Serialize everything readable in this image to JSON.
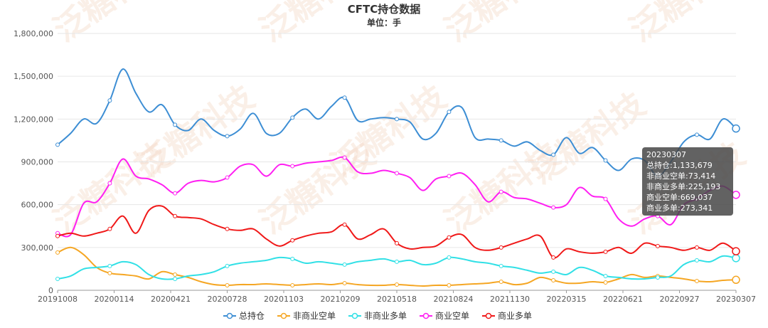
{
  "chart_data": {
    "type": "line",
    "title": "CFTC持仓数据",
    "subtitle": "单位：手",
    "ylim": [
      0,
      1800000
    ],
    "y_ticks": [
      "0",
      "300,000",
      "600,000",
      "900,000",
      "1,200,000",
      "1,500,000",
      "1,800,000"
    ],
    "y_tick_values": [
      0,
      300000,
      600000,
      900000,
      1200000,
      1500000,
      1800000
    ],
    "x_tick_labels": [
      "20191008",
      "20200114",
      "20200421",
      "20200728",
      "20201103",
      "20210209",
      "20210518",
      "20210824",
      "20211130",
      "20220315",
      "20220621",
      "20220927",
      "20230307"
    ],
    "grid": true,
    "legend_position": "bottom",
    "watermark": "泛糖科技",
    "series": [
      {
        "name": "总持仓",
        "color": "#3d8ed4",
        "values": [
          1020000,
          1100000,
          1200000,
          1170000,
          1330000,
          1550000,
          1380000,
          1250000,
          1300000,
          1160000,
          1120000,
          1200000,
          1120000,
          1080000,
          1130000,
          1240000,
          1100000,
          1100000,
          1210000,
          1270000,
          1200000,
          1290000,
          1350000,
          1190000,
          1200000,
          1210000,
          1200000,
          1180000,
          1060000,
          1100000,
          1250000,
          1280000,
          1070000,
          1060000,
          1050000,
          1010000,
          1040000,
          980000,
          950000,
          1070000,
          960000,
          1000000,
          910000,
          840000,
          920000,
          910000,
          800000,
          900000,
          1040000,
          1090000,
          1060000,
          1200000,
          1133679
        ]
      },
      {
        "name": "非商业空单",
        "color": "#f5a623",
        "values": [
          265000,
          300000,
          250000,
          160000,
          120000,
          110000,
          100000,
          80000,
          130000,
          110000,
          90000,
          60000,
          40000,
          35000,
          40000,
          40000,
          45000,
          40000,
          35000,
          40000,
          45000,
          40000,
          50000,
          40000,
          35000,
          35000,
          40000,
          35000,
          30000,
          35000,
          35000,
          40000,
          45000,
          50000,
          60000,
          40000,
          50000,
          90000,
          70000,
          50000,
          50000,
          60000,
          55000,
          80000,
          110000,
          90000,
          100000,
          90000,
          80000,
          65000,
          60000,
          70000,
          73414
        ]
      },
      {
        "name": "非商业多单",
        "color": "#31e0e6",
        "values": [
          80000,
          100000,
          150000,
          160000,
          170000,
          200000,
          180000,
          110000,
          80000,
          80000,
          100000,
          110000,
          130000,
          170000,
          190000,
          200000,
          210000,
          230000,
          220000,
          190000,
          200000,
          190000,
          180000,
          200000,
          210000,
          220000,
          200000,
          210000,
          180000,
          190000,
          230000,
          220000,
          200000,
          190000,
          170000,
          160000,
          140000,
          120000,
          130000,
          110000,
          160000,
          140000,
          100000,
          90000,
          80000,
          80000,
          90000,
          100000,
          180000,
          210000,
          200000,
          240000,
          225193
        ]
      },
      {
        "name": "商业空单",
        "color": "#ff1ff2",
        "values": [
          400000,
          390000,
          610000,
          620000,
          750000,
          920000,
          800000,
          780000,
          740000,
          680000,
          750000,
          770000,
          760000,
          790000,
          870000,
          880000,
          800000,
          880000,
          870000,
          890000,
          900000,
          910000,
          930000,
          830000,
          820000,
          840000,
          820000,
          790000,
          700000,
          780000,
          800000,
          820000,
          740000,
          620000,
          690000,
          650000,
          640000,
          610000,
          580000,
          600000,
          720000,
          660000,
          640000,
          500000,
          450000,
          500000,
          520000,
          460000,
          600000,
          640000,
          700000,
          730000,
          669037
        ]
      },
      {
        "name": "商业多单",
        "color": "#f01818",
        "values": [
          380000,
          400000,
          380000,
          400000,
          430000,
          520000,
          400000,
          560000,
          590000,
          520000,
          510000,
          500000,
          460000,
          430000,
          420000,
          430000,
          360000,
          310000,
          350000,
          380000,
          400000,
          410000,
          460000,
          360000,
          390000,
          430000,
          330000,
          290000,
          300000,
          310000,
          370000,
          390000,
          300000,
          280000,
          300000,
          330000,
          360000,
          380000,
          230000,
          290000,
          270000,
          260000,
          270000,
          300000,
          260000,
          330000,
          310000,
          300000,
          280000,
          300000,
          280000,
          330000,
          273341
        ]
      }
    ],
    "markers": [
      0,
      4,
      9,
      13,
      18,
      22,
      26,
      30,
      34,
      38,
      42,
      46,
      49,
      52
    ],
    "tooltip": {
      "date": "20230307",
      "lines": [
        "总持仓:1,133,679",
        "非商业空单:73,414",
        "非商业多单:225,193",
        "商业空单:669,037",
        "商业多单:273,341"
      ]
    }
  }
}
